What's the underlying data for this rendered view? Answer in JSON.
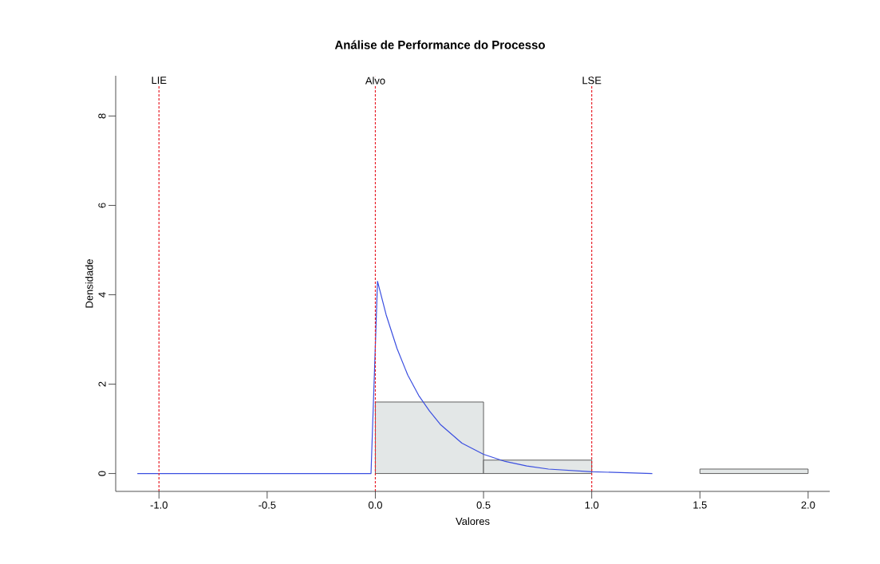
{
  "chart_data": {
    "type": "histogram",
    "title": "Análise de Performance do Processo",
    "xlabel": "Valores",
    "ylabel": "Densidade",
    "bins": [
      0,
      0.5,
      1,
      1.5,
      2
    ],
    "values": [
      1.6,
      0.3,
      0,
      0.1
    ],
    "color": "#e3e7e7",
    "series": [
      {
        "type": "line",
        "color": "#3b4fe0",
        "x": [
          -1.1,
          -0.02,
          0.01,
          0.05,
          0.1,
          0.15,
          0.2,
          0.25,
          0.3,
          0.4,
          0.5,
          0.6,
          0.7,
          0.8,
          1.0,
          1.28
        ],
        "values": [
          0,
          0,
          4.3,
          3.55,
          2.8,
          2.2,
          1.75,
          1.4,
          1.1,
          0.68,
          0.43,
          0.27,
          0.17,
          0.1,
          0.04,
          0
        ]
      }
    ],
    "ref_lines": [
      {
        "axis": "x",
        "value": -1,
        "label": "LIE",
        "color": "#e8202a",
        "line_style": "dashed"
      },
      {
        "axis": "x",
        "value": 0,
        "label": "Alvo",
        "color": "#e8202a",
        "line_style": "dashed"
      },
      {
        "axis": "x",
        "value": 1,
        "label": "LSE",
        "color": "#e8202a",
        "line_style": "dashed"
      }
    ],
    "xlim": [
      -1.2,
      2.1
    ],
    "ylim": [
      -0.4,
      8.9
    ],
    "xticks": [
      {
        "value": -1,
        "label": "-1.0"
      },
      -0.5,
      {
        "value": 0,
        "label": "0.0"
      },
      0.5,
      {
        "value": 1,
        "label": "1.0"
      },
      1.5,
      {
        "value": 2,
        "label": "2.0"
      }
    ],
    "yticks": [
      0,
      2,
      4,
      6,
      8
    ]
  }
}
